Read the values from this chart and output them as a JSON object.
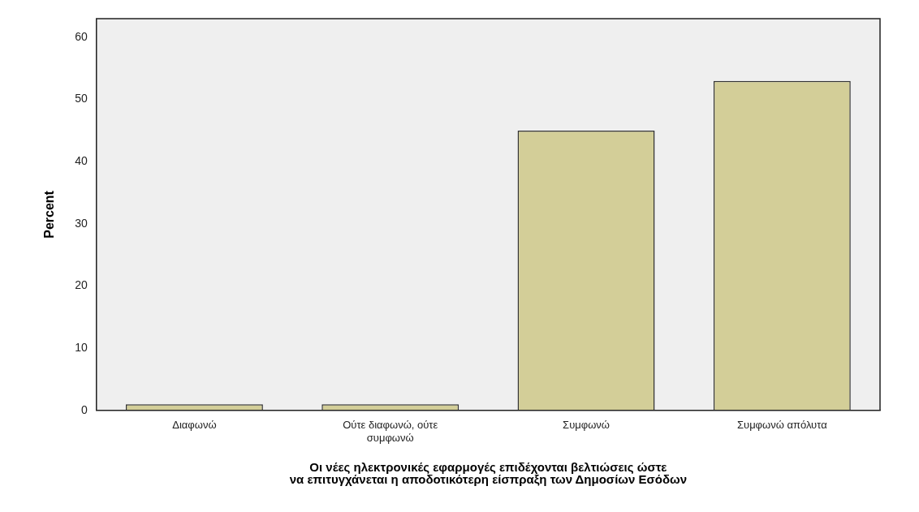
{
  "chart_data": {
    "type": "bar",
    "xlabel": "Οι νέες ηλεκτρονικές εφαρμογές επιδέχονται βελτιώσεις ώστε να επιτυγχάνεται η αποδοτικότερη είσπραξη των Δημοσίων Εσόδων",
    "ylabel": "Percent",
    "categories": [
      "Διαφωνώ",
      "Ούτε διαφωνώ, ούτε συμφωνώ",
      "Συμφωνώ",
      "Συμφωνώ απόλυτα"
    ],
    "values": [
      1,
      1,
      45,
      53
    ],
    "color": "#d3ce98",
    "ylim": [
      0,
      63
    ],
    "yticks": [
      0,
      10,
      20,
      30,
      40,
      50,
      60
    ],
    "grid": false,
    "legend": false
  }
}
